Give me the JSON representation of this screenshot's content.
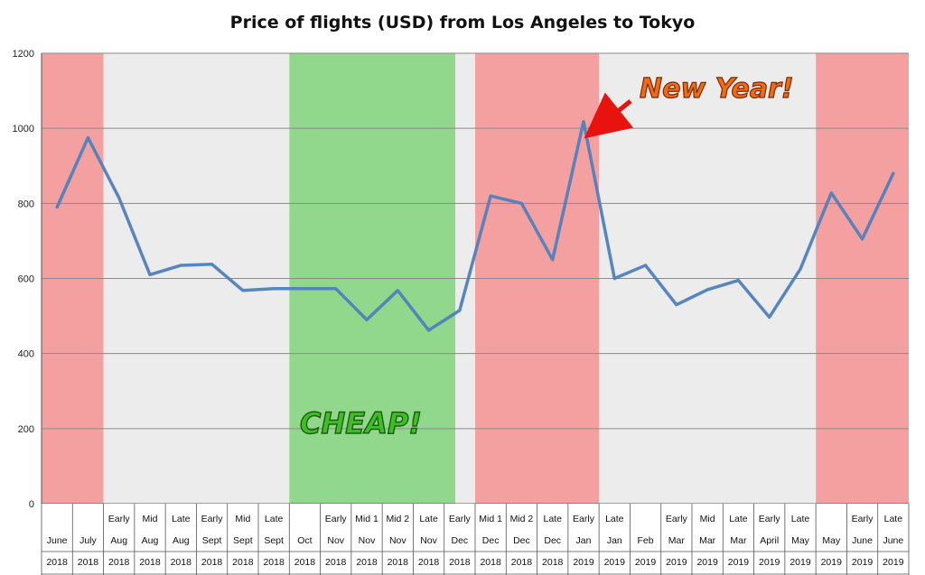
{
  "chart_data": {
    "type": "line",
    "title": "Price of flights (USD) from Los Angeles to Tokyo",
    "ylim": [
      0,
      1200
    ],
    "yticks": [
      0,
      200,
      400,
      600,
      800,
      1000,
      1200
    ],
    "grid": true,
    "legend": "none",
    "x_labels": [
      [
        "",
        "June",
        "2018"
      ],
      [
        "",
        "July",
        "2018"
      ],
      [
        "Early",
        "Aug",
        "2018"
      ],
      [
        "Mid",
        "Aug",
        "2018"
      ],
      [
        "Late",
        "Aug",
        "2018"
      ],
      [
        "Early",
        "Sept",
        "2018"
      ],
      [
        "Mid",
        "Sept",
        "2018"
      ],
      [
        "Late",
        "Sept",
        "2018"
      ],
      [
        "",
        "Oct",
        "2018"
      ],
      [
        "Early",
        "Nov",
        "2018"
      ],
      [
        "Mid 1",
        "Nov",
        "2018"
      ],
      [
        "Mid 2",
        "Nov",
        "2018"
      ],
      [
        "Late",
        "Nov",
        "2018"
      ],
      [
        "Early",
        "Dec",
        "2018"
      ],
      [
        "Mid 1",
        "Dec",
        "2018"
      ],
      [
        "Mid 2",
        "Dec",
        "2018"
      ],
      [
        "Late",
        "Dec",
        "2018"
      ],
      [
        "Early",
        "Jan",
        "2019"
      ],
      [
        "Late",
        "Jan",
        "2019"
      ],
      [
        "",
        "Feb",
        "2019"
      ],
      [
        "Early",
        "Mar",
        "2019"
      ],
      [
        "Mid",
        "Mar",
        "2019"
      ],
      [
        "Late",
        "Mar",
        "2019"
      ],
      [
        "Early",
        "April",
        "2019"
      ],
      [
        "Late",
        "May",
        "2019"
      ],
      [
        "",
        "May",
        "2019"
      ],
      [
        "Early",
        "June",
        "2019"
      ],
      [
        "Late",
        "June",
        "2019"
      ]
    ],
    "series": [
      {
        "values": [
          790,
          975,
          815,
          610,
          635,
          638,
          568,
          573,
          573,
          573,
          490,
          568,
          462,
          515,
          820,
          800,
          650,
          1018,
          600,
          635,
          530,
          570,
          595,
          497,
          625,
          828,
          705,
          880
        ],
        "color": "#4f81bd"
      }
    ],
    "bands": [
      {
        "from_index": 0,
        "to_index": 1,
        "color": "#f4a0a0",
        "style": "expensive"
      },
      {
        "from_index": 2,
        "to_index": 7,
        "color": "#ececec",
        "style": "neutral"
      },
      {
        "from_index": 8,
        "to_index": 13,
        "color": "#92d88c",
        "style": "cheap"
      },
      {
        "from_index": 14,
        "to_index": 17,
        "color": "#f4a0a0",
        "style": "expensive"
      },
      {
        "from_index": 18,
        "to_index": 24,
        "color": "#ececec",
        "style": "neutral"
      },
      {
        "from_index": 25,
        "to_index": 27,
        "color": "#f4a0a0",
        "style": "expensive"
      }
    ],
    "annotations": [
      {
        "text": "New Year!",
        "color": "#f06a18",
        "points_to_index": 17
      },
      {
        "text": "CHEAP!",
        "color": "#3fbf25"
      }
    ]
  }
}
